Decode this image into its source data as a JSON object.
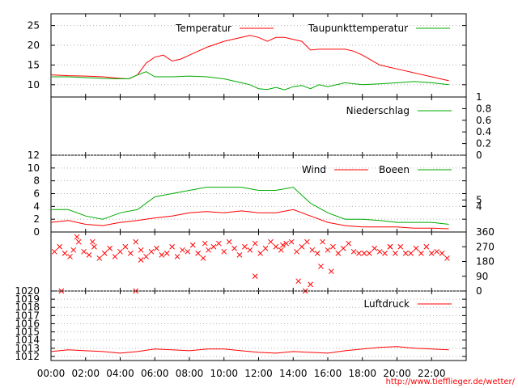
{
  "chart_data": {
    "type": "line",
    "x_tick_labels": [
      "00:00",
      "02:00",
      "04:00",
      "06:00",
      "08:00",
      "10:00",
      "12:00",
      "14:00",
      "16:00",
      "18:00",
      "20:00",
      "22:00"
    ],
    "x_hours": [
      0,
      2,
      4,
      6,
      8,
      10,
      12,
      14,
      16,
      18,
      20,
      22
    ],
    "credit": "http://www.tiefflieger.de/wetter/",
    "colors": {
      "red": "#ff0000",
      "green": "#00aa00",
      "grid": "#b0b0b0"
    },
    "panels": [
      {
        "id": "temperature",
        "ylim": [
          7.5,
          28
        ],
        "left_ticks": [
          10,
          15,
          20,
          25
        ],
        "right_ticks": [],
        "grid": true,
        "legend": [
          "Temperatur",
          "Taupunkttemperatur"
        ],
        "series": [
          {
            "name": "Temperatur",
            "color": "#ff0000",
            "x": [
              0,
              1,
              2,
              3,
              4,
              4.5,
              5,
              5.5,
              6,
              6.5,
              7,
              7.5,
              8,
              9,
              10,
              11,
              11.5,
              12,
              12.5,
              13,
              13.5,
              14,
              14.5,
              15,
              15.5,
              16,
              17,
              17.5,
              18,
              19,
              20,
              21,
              22,
              23
            ],
            "y": [
              12.5,
              12.3,
              12.2,
              12.0,
              11.6,
              11.5,
              12.5,
              15.5,
              17.0,
              17.5,
              16.0,
              16.5,
              17.5,
              19.5,
              21.0,
              22.0,
              22.5,
              22.0,
              21.0,
              22.0,
              22.0,
              21.5,
              21.0,
              18.8,
              19.0,
              19.0,
              19.0,
              18.5,
              17.5,
              15.0,
              14.0,
              13.0,
              12.0,
              11.0
            ]
          },
          {
            "name": "Taupunkttemperatur",
            "color": "#00aa00",
            "x": [
              0,
              1,
              2,
              3,
              4,
              4.5,
              5,
              5.5,
              6,
              7,
              8,
              9,
              10,
              11,
              11.5,
              12,
              12.5,
              13,
              13.5,
              14,
              14.5,
              15,
              15.5,
              16,
              17,
              18,
              19,
              20,
              21,
              22,
              23
            ],
            "y": [
              12.0,
              12.0,
              11.8,
              11.6,
              11.5,
              11.5,
              12.5,
              13.3,
              12.0,
              12.0,
              12.2,
              12.0,
              11.5,
              10.5,
              10.0,
              9.0,
              8.8,
              9.3,
              8.7,
              9.5,
              9.8,
              9.0,
              10.0,
              9.5,
              10.5,
              10.0,
              10.2,
              10.5,
              10.8,
              10.5,
              10.0
            ]
          }
        ]
      },
      {
        "id": "precipitation",
        "ylim": [
          0,
          1
        ],
        "left_ticks": [],
        "right_ticks": [
          0,
          0.2,
          0.4,
          0.6,
          0.8,
          1
        ],
        "grid": false,
        "legend": [
          "Niederschlag"
        ],
        "series": [
          {
            "name": "Niederschlag",
            "color": "#00aa00",
            "x": [
              0,
              23
            ],
            "y": [
              0,
              0
            ]
          }
        ]
      },
      {
        "id": "wind",
        "ylim": [
          0,
          12
        ],
        "left_ticks": [
          0,
          2,
          4,
          6,
          8,
          10,
          12
        ],
        "right_ticks": [
          4,
          5
        ],
        "grid": true,
        "legend": [
          "Wind",
          "Boeen"
        ],
        "series": [
          {
            "name": "Wind",
            "color": "#ff0000",
            "x": [
              0,
              1,
              2,
              3,
              4,
              5,
              6,
              7,
              8,
              9,
              10,
              11,
              12,
              13,
              14,
              15,
              16,
              17,
              18,
              19,
              20,
              21,
              22,
              23
            ],
            "y": [
              1.5,
              1.8,
              1.2,
              1.0,
              1.5,
              1.8,
              2.2,
              2.5,
              3.0,
              3.2,
              3.0,
              3.3,
              3.0,
              3.0,
              3.5,
              2.5,
              1.5,
              1.0,
              0.8,
              0.8,
              0.8,
              0.6,
              0.6,
              0.5
            ]
          },
          {
            "name": "Boeen",
            "color": "#00aa00",
            "x": [
              0,
              1,
              2,
              3,
              4,
              5,
              6,
              7,
              8,
              9,
              10,
              11,
              12,
              13,
              14,
              15,
              16,
              17,
              18,
              19,
              20,
              21,
              22,
              23
            ],
            "y": [
              3.5,
              3.5,
              2.5,
              2.0,
              3.0,
              3.5,
              5.5,
              6.0,
              6.5,
              7.0,
              7.0,
              7.0,
              6.5,
              6.5,
              7.0,
              4.5,
              3.0,
              2.0,
              2.0,
              1.8,
              1.5,
              1.5,
              1.5,
              1.2
            ]
          }
        ]
      },
      {
        "id": "wind_direction",
        "ylim": [
          0,
          360
        ],
        "left_ticks": [],
        "right_ticks": [
          0,
          90,
          180,
          270,
          360
        ],
        "grid": false,
        "legend": [],
        "markers": {
          "color": "#ff0000",
          "symbol": "x",
          "x": [
            0.2,
            0.5,
            0.8,
            1.1,
            1.3,
            1.6,
            1.9,
            2.2,
            2.5,
            2.8,
            3.1,
            3.4,
            3.7,
            4.0,
            4.3,
            4.6,
            4.9,
            5.2,
            5.5,
            5.8,
            6.1,
            6.4,
            6.7,
            7.0,
            7.3,
            7.6,
            7.9,
            8.2,
            8.5,
            8.8,
            9.1,
            9.4,
            9.7,
            10.0,
            10.3,
            10.6,
            10.9,
            11.2,
            11.5,
            11.8,
            12.1,
            12.4,
            12.7,
            13.0,
            13.3,
            13.6,
            13.9,
            14.2,
            14.5,
            14.8,
            15.1,
            15.4,
            15.7,
            16.0,
            16.3,
            16.6,
            16.9,
            17.2,
            17.5,
            17.8,
            18.1,
            18.4,
            18.7,
            19.0,
            19.3,
            19.6,
            19.9,
            20.2,
            20.5,
            20.8,
            21.1,
            21.4,
            21.7,
            22.0,
            22.3,
            22.6,
            22.9,
            1.5,
            5.2,
            11.8,
            14.3,
            15.0,
            15.6,
            16.2,
            0.6,
            4.9,
            14.7,
            2.4,
            8.9,
            13.4,
            19.6
          ],
          "y": [
            240,
            270,
            230,
            210,
            250,
            300,
            240,
            220,
            270,
            200,
            230,
            260,
            210,
            240,
            270,
            230,
            300,
            250,
            210,
            240,
            260,
            220,
            230,
            270,
            210,
            250,
            240,
            280,
            230,
            200,
            250,
            270,
            290,
            240,
            300,
            260,
            220,
            270,
            250,
            290,
            230,
            260,
            300,
            270,
            250,
            290,
            300,
            240,
            270,
            300,
            250,
            230,
            300,
            250,
            270,
            230,
            260,
            290,
            240,
            230,
            230,
            230,
            260,
            240,
            230,
            270,
            230,
            270,
            230,
            230,
            260,
            230,
            270,
            230,
            240,
            230,
            200,
            330,
            190,
            90,
            60,
            40,
            150,
            120,
            0,
            0,
            0,
            300,
            290,
            280,
            270
          ]
        }
      },
      {
        "id": "pressure",
        "ylim": [
          1011.5,
          1020
        ],
        "left_ticks": [
          1012,
          1013,
          1014,
          1015,
          1016,
          1017,
          1018,
          1019,
          1020
        ],
        "right_ticks": [],
        "grid": true,
        "legend": [
          "Luftdruck"
        ],
        "series": [
          {
            "name": "Luftdruck",
            "color": "#ff0000",
            "x": [
              0,
              1,
              2,
              3,
              4,
              5,
              6,
              7,
              8,
              9,
              10,
              11,
              12,
              13,
              14,
              15,
              16,
              17,
              18,
              19,
              20,
              21,
              22,
              23
            ],
            "y": [
              1012.6,
              1012.8,
              1012.7,
              1012.6,
              1012.4,
              1012.6,
              1012.9,
              1012.8,
              1012.7,
              1012.9,
              1012.9,
              1012.7,
              1012.5,
              1012.4,
              1012.6,
              1012.5,
              1012.4,
              1012.7,
              1012.9,
              1013.1,
              1013.2,
              1013.0,
              1012.9,
              1012.8
            ]
          }
        ]
      }
    ]
  }
}
